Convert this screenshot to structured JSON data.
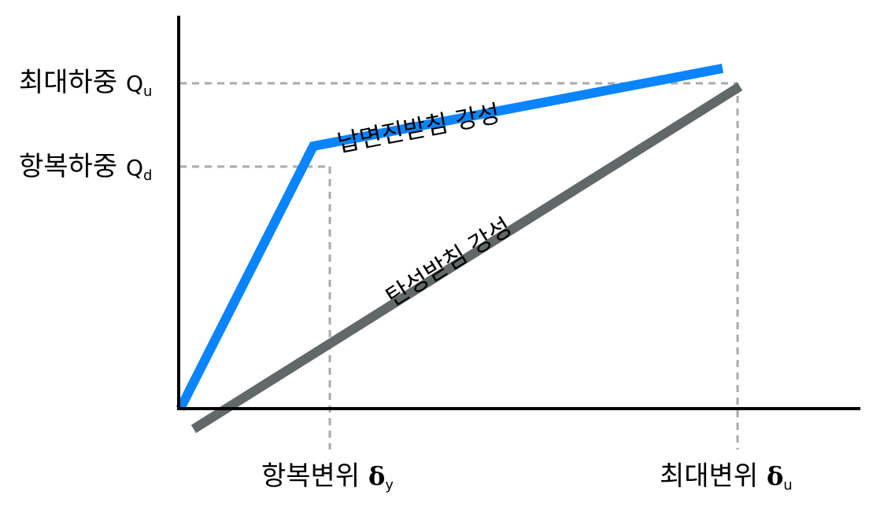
{
  "y_axis": {
    "ultimate_load": {
      "label": "최대하중",
      "symbol": "Q",
      "subscript": "u"
    },
    "yield_load": {
      "label": "항복하중",
      "symbol": "Q",
      "subscript": "d"
    }
  },
  "x_axis": {
    "yield_displacement": {
      "label": "항복변위",
      "symbol": "δ",
      "subscript": "y"
    },
    "ultimate_displacement": {
      "label": "최대변위",
      "symbol": "δ",
      "subscript": "u"
    }
  },
  "curves": {
    "lead_rubber": {
      "label": "납면진받침 강성",
      "color": "#0a84ff"
    },
    "elastic": {
      "label": "탄성받침 강성",
      "color": "#606868"
    }
  },
  "colors": {
    "axis": "#000000",
    "guide": "#aaaaaa"
  }
}
